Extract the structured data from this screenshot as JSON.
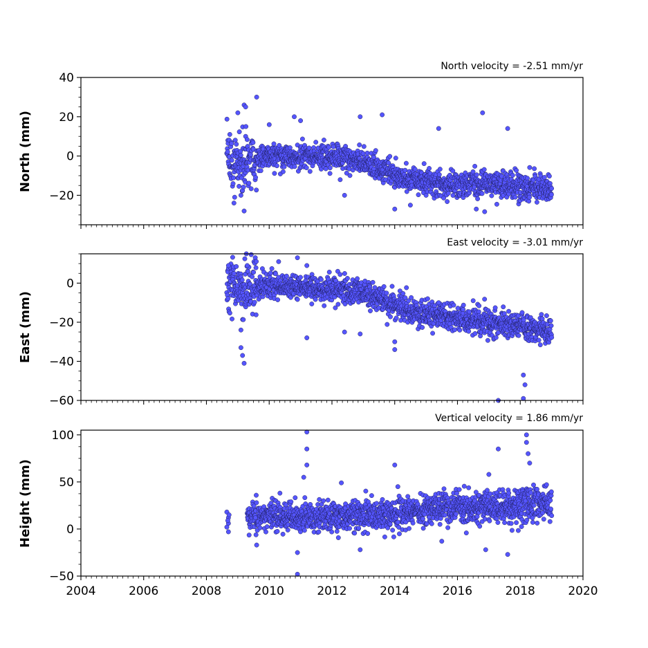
{
  "chart_data": [
    {
      "type": "scatter",
      "title": "North velocity = -2.51 mm/yr",
      "ylabel": "North (mm)",
      "xlim": [
        2004,
        2020
      ],
      "ylim": [
        -35,
        40
      ],
      "yticks": [
        -20,
        0,
        20,
        40
      ],
      "xticks": [
        2004,
        2006,
        2008,
        2010,
        2012,
        2014,
        2016,
        2018,
        2020
      ],
      "show_xtick_labels": false,
      "marker_color": "#5555ff",
      "series": [
        {
          "trend": [
            [
              2008.65,
              -3
            ],
            [
              2009.0,
              -4
            ],
            [
              2009.5,
              -2
            ],
            [
              2010.0,
              0
            ],
            [
              2011.0,
              0
            ],
            [
              2012.0,
              -1
            ],
            [
              2012.8,
              -2
            ],
            [
              2013.5,
              -6
            ],
            [
              2014.2,
              -11
            ],
            [
              2015.0,
              -14
            ],
            [
              2016.0,
              -15
            ],
            [
              2017.0,
              -14
            ],
            [
              2018.0,
              -16
            ],
            [
              2019.0,
              -17
            ]
          ],
          "outliers": [
            [
              2009.0,
              22
            ],
            [
              2009.2,
              26
            ],
            [
              2009.25,
              25
            ],
            [
              2009.6,
              30
            ],
            [
              2008.9,
              -21
            ],
            [
              2009.1,
              -20
            ],
            [
              2009.2,
              -28
            ],
            [
              2010.0,
              16
            ],
            [
              2010.8,
              20
            ],
            [
              2011.0,
              18
            ],
            [
              2012.4,
              -20
            ],
            [
              2012.9,
              20
            ],
            [
              2013.6,
              21
            ],
            [
              2014.0,
              -27
            ],
            [
              2015.4,
              14
            ],
            [
              2016.8,
              22
            ],
            [
              2017.6,
              14
            ],
            [
              2016.6,
              -27
            ],
            [
              2015.0,
              -20
            ],
            [
              2014.5,
              -25
            ]
          ]
        }
      ]
    },
    {
      "type": "scatter",
      "title": "East velocity = -3.01 mm/yr",
      "ylabel": "East (mm)",
      "xlim": [
        2004,
        2020
      ],
      "ylim": [
        -60,
        15
      ],
      "yticks": [
        -60,
        -40,
        -20,
        0
      ],
      "xticks": [
        2004,
        2006,
        2008,
        2010,
        2012,
        2014,
        2016,
        2018,
        2020
      ],
      "show_xtick_labels": false,
      "marker_color": "#5555ff",
      "series": [
        {
          "trend": [
            [
              2008.65,
              0
            ],
            [
              2009.0,
              -2
            ],
            [
              2009.5,
              -2
            ],
            [
              2010.0,
              -1
            ],
            [
              2011.0,
              -2
            ],
            [
              2012.0,
              -3
            ],
            [
              2012.8,
              -4
            ],
            [
              2013.5,
              -8
            ],
            [
              2014.2,
              -13
            ],
            [
              2015.0,
              -16
            ],
            [
              2016.0,
              -18
            ],
            [
              2017.0,
              -20
            ],
            [
              2018.0,
              -22
            ],
            [
              2019.0,
              -25
            ]
          ],
          "outliers": [
            [
              2008.7,
              9
            ],
            [
              2009.3,
              9
            ],
            [
              2010.3,
              11
            ],
            [
              2010.9,
              13
            ],
            [
              2011.2,
              9
            ],
            [
              2009.1,
              -33
            ],
            [
              2009.15,
              -37
            ],
            [
              2009.2,
              -41
            ],
            [
              2009.1,
              -24
            ],
            [
              2011.2,
              -28
            ],
            [
              2012.4,
              -25
            ],
            [
              2012.9,
              -26
            ],
            [
              2014.0,
              -34
            ],
            [
              2014.0,
              -30
            ],
            [
              2017.3,
              -60
            ],
            [
              2018.1,
              -47
            ],
            [
              2018.15,
              -52
            ],
            [
              2018.1,
              -59
            ],
            [
              2016.5,
              -9
            ],
            [
              2015.4,
              -10
            ]
          ]
        }
      ]
    },
    {
      "type": "scatter",
      "title": "Vertical velocity = 1.86 mm/yr",
      "ylabel": "Height (mm)",
      "xlabel": "",
      "xlim": [
        2004,
        2020
      ],
      "ylim": [
        -50,
        105
      ],
      "yticks": [
        -50,
        0,
        50,
        100
      ],
      "xticks": [
        2004,
        2006,
        2008,
        2010,
        2012,
        2014,
        2016,
        2018,
        2020
      ],
      "show_xtick_labels": true,
      "marker_color": "#5555ff",
      "series": [
        {
          "trend": [
            [
              2009.3,
              13
            ],
            [
              2010.0,
              14
            ],
            [
              2011.0,
              14
            ],
            [
              2012.0,
              13
            ],
            [
              2013.0,
              14
            ],
            [
              2014.0,
              17
            ],
            [
              2015.0,
              20
            ],
            [
              2016.0,
              22
            ],
            [
              2017.0,
              23
            ],
            [
              2018.0,
              25
            ],
            [
              2019.0,
              28
            ]
          ],
          "cluster": [
            [
              2008.65,
              18
            ],
            [
              2008.7,
              12
            ],
            [
              2008.7,
              6
            ],
            [
              2008.65,
              2
            ],
            [
              2008.7,
              -3
            ],
            [
              2008.72,
              15
            ],
            [
              2008.68,
              9
            ]
          ],
          "outliers": [
            [
              2011.2,
              103
            ],
            [
              2011.2,
              85
            ],
            [
              2011.2,
              68
            ],
            [
              2011.1,
              55
            ],
            [
              2010.9,
              -25
            ],
            [
              2010.9,
              -48
            ],
            [
              2012.9,
              -22
            ],
            [
              2012.3,
              49
            ],
            [
              2014.0,
              68
            ],
            [
              2014.1,
              45
            ],
            [
              2016.9,
              -22
            ],
            [
              2017.3,
              85
            ],
            [
              2017.6,
              -27
            ],
            [
              2018.2,
              100
            ],
            [
              2018.2,
              92
            ],
            [
              2018.25,
              80
            ],
            [
              2018.3,
              70
            ],
            [
              2017.0,
              58
            ],
            [
              2015.5,
              -13
            ],
            [
              2009.6,
              -17
            ]
          ]
        }
      ]
    }
  ]
}
